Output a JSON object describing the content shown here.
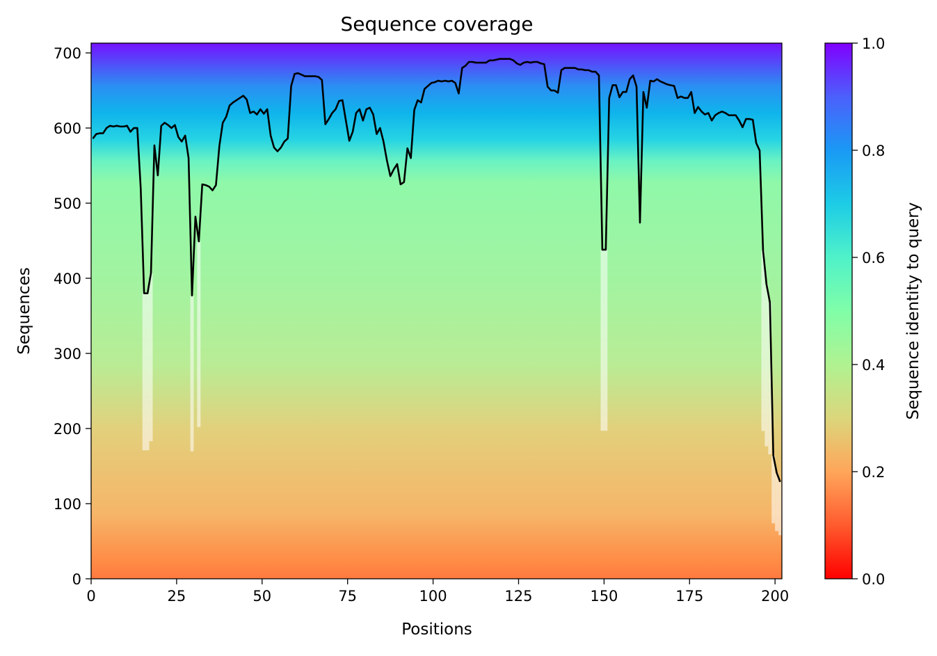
{
  "chart_data": {
    "type": "heatmap",
    "title": "Sequence coverage",
    "xlabel": "Positions",
    "ylabel": "Sequences",
    "xlim": [
      0,
      202
    ],
    "ylim": [
      0,
      713
    ],
    "xticks": [
      0,
      25,
      50,
      75,
      100,
      125,
      150,
      175,
      200
    ],
    "yticks": [
      0,
      100,
      200,
      300,
      400,
      500,
      600,
      700
    ],
    "colorbar": {
      "label": "Sequence identity to query",
      "range": [
        0.0,
        1.0
      ],
      "ticks": [
        "0.0",
        "0.2",
        "0.4",
        "0.6",
        "0.8",
        "1.0"
      ],
      "colormap": "rainbow_r"
    },
    "coverage_line": {
      "color": "#000000",
      "x": [
        0,
        1,
        2,
        3,
        4,
        5,
        6,
        7,
        8,
        9,
        10,
        11,
        12,
        13,
        14,
        15,
        16,
        17,
        18,
        19,
        20,
        21,
        22,
        23,
        24,
        25,
        26,
        27,
        28,
        29,
        30,
        31,
        32,
        33,
        34,
        35,
        36,
        37,
        38,
        39,
        40,
        41,
        42,
        43,
        44,
        45,
        46,
        47,
        48,
        49,
        50,
        51,
        52,
        53,
        54,
        55,
        56,
        57,
        58,
        59,
        60,
        61,
        62,
        63,
        64,
        65,
        66,
        67,
        68,
        69,
        70,
        71,
        72,
        73,
        74,
        75,
        76,
        77,
        78,
        79,
        80,
        81,
        82,
        83,
        84,
        85,
        86,
        87,
        88,
        89,
        90,
        91,
        92,
        93,
        94,
        95,
        96,
        97,
        98,
        99,
        100,
        101,
        102,
        103,
        104,
        105,
        106,
        107,
        108,
        109,
        110,
        111,
        112,
        113,
        114,
        115,
        116,
        117,
        118,
        119,
        120,
        121,
        122,
        123,
        124,
        125,
        126,
        127,
        128,
        129,
        130,
        131,
        132,
        133,
        134,
        135,
        136,
        137,
        138,
        139,
        140,
        141,
        142,
        143,
        144,
        145,
        146,
        147,
        148,
        149,
        150,
        151,
        152,
        153,
        154,
        155,
        156,
        157,
        158,
        159,
        160,
        161,
        162,
        163,
        164,
        165,
        166,
        167,
        168,
        169,
        170,
        171,
        172,
        173,
        174,
        175,
        176,
        177,
        178,
        179,
        180,
        181,
        182,
        183,
        184,
        185,
        186,
        187,
        188,
        189,
        190,
        191,
        192,
        193,
        194,
        195,
        196,
        197,
        198,
        199,
        200,
        201
      ],
      "y": [
        586,
        592,
        593,
        593,
        600,
        603,
        602,
        603,
        602,
        602,
        603,
        595,
        600,
        600,
        520,
        380,
        380,
        407,
        577,
        537,
        603,
        607,
        604,
        600,
        604,
        588,
        582,
        590,
        560,
        377,
        482,
        449,
        525,
        524,
        522,
        517,
        524,
        576,
        607,
        615,
        630,
        634,
        637,
        640,
        643,
        638,
        620,
        622,
        618,
        625,
        619,
        625,
        590,
        574,
        569,
        574,
        582,
        586,
        656,
        672,
        673,
        671,
        669,
        669,
        669,
        669,
        668,
        664,
        605,
        612,
        620,
        625,
        636,
        637,
        610,
        583,
        595,
        620,
        625,
        610,
        625,
        627,
        618,
        592,
        600,
        582,
        557,
        536,
        545,
        552,
        525,
        528,
        573,
        560,
        624,
        637,
        634,
        652,
        656,
        660,
        661,
        663,
        662,
        663,
        662,
        663,
        660,
        646,
        680,
        683,
        688,
        688,
        687,
        687,
        687,
        687,
        690,
        690,
        691,
        692,
        692,
        692,
        692,
        690,
        686,
        684,
        687,
        688,
        687,
        688,
        688,
        686,
        685,
        655,
        650,
        650,
        647,
        677,
        680,
        680,
        680,
        680,
        678,
        678,
        677,
        677,
        675,
        675,
        670,
        438,
        438,
        640,
        657,
        657,
        641,
        648,
        648,
        665,
        670,
        655,
        474,
        648,
        627,
        663,
        662,
        665,
        662,
        660,
        658,
        657,
        656,
        640,
        642,
        640,
        640,
        648,
        620,
        628,
        622,
        618,
        620,
        610,
        617,
        620,
        622,
        620,
        617,
        617,
        617,
        610,
        601,
        612,
        612,
        611,
        580,
        570,
        437,
        392,
        368,
        164,
        141,
        129
      ]
    }
  }
}
